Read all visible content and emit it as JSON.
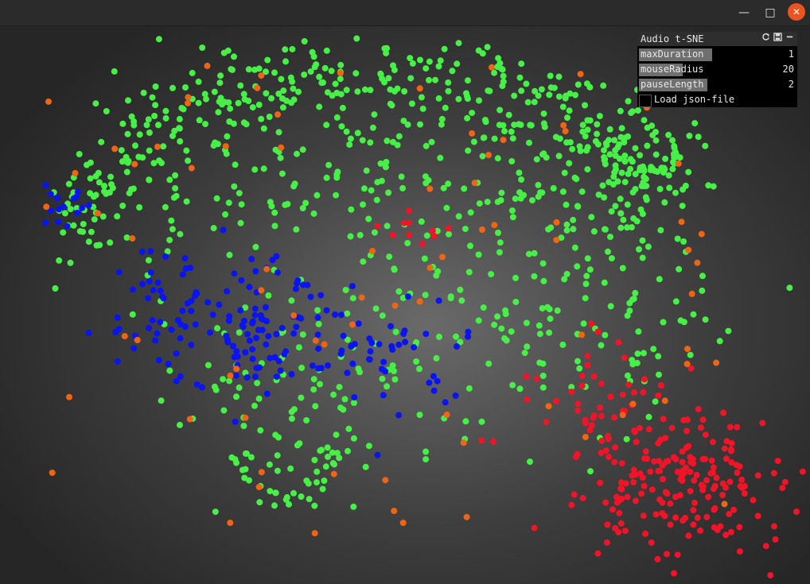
{
  "window": {
    "minimize_icon": "minimize-icon",
    "maximize_icon": "maximize-icon",
    "close_icon": "close-icon"
  },
  "gui": {
    "title": "Audio t-SNE",
    "header_icons": [
      "refresh-icon",
      "save-icon",
      "collapse-icon"
    ],
    "controls": [
      {
        "label": "maxDuration",
        "value": "1",
        "fill": 0.47
      },
      {
        "label": "mouseRadius",
        "value": "20",
        "fill": 0.28
      },
      {
        "label": "pauseLength",
        "value": "2",
        "fill": 0.44
      }
    ],
    "toggle": {
      "label": "Load json-file",
      "checked": false
    }
  },
  "colors": {
    "green": "#46f046",
    "blue": "#0a14f0",
    "red": "#f01428",
    "orange": "#f06414"
  }
}
